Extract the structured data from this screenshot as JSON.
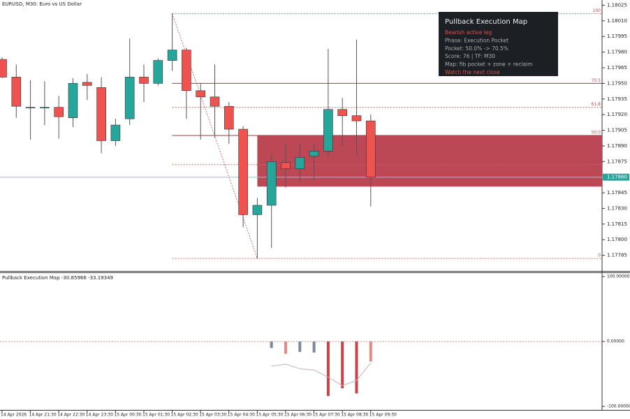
{
  "chart_data": [
    {
      "type": "candlestick",
      "title": "EURUSD, M30: Euro vs US Dollar",
      "categories": [
        "14 Apr 2026",
        null,
        "14 Apr 21:30",
        null,
        "14 Apr 22:30",
        null,
        "14 Apr 23:30",
        null,
        "15 Apr 00:30",
        null,
        "15 Apr 01:30",
        null,
        "15 Apr 02:30",
        null,
        "15 Apr 03:30",
        null,
        "15 Apr 04:30",
        null,
        "15 Apr 05:30",
        null,
        "15 Apr 06:30",
        null,
        "15 Apr 07:30",
        null,
        "15 Apr 08:30",
        null,
        "15 Apr 09:30"
      ],
      "open": [
        1.17973,
        1.17956,
        1.17927,
        1.17927,
        1.17927,
        1.17917,
        1.17951,
        1.17946,
        1.17895,
        1.17916,
        1.17956,
        1.1795,
        1.17972,
        1.17982,
        1.17943,
        1.17937,
        1.17928,
        1.17906,
        1.17824,
        1.17833,
        1.17874,
        1.17868,
        1.1788,
        1.17885,
        1.17925,
        1.17919,
        1.17914
      ],
      "high": [
        1.17975,
        1.17968,
        1.17953,
        1.17952,
        1.17938,
        1.17955,
        1.17959,
        1.17956,
        1.17916,
        1.17993,
        1.17968,
        1.17974,
        1.18017,
        1.17984,
        1.1795,
        1.17968,
        1.17932,
        1.17909,
        1.1784,
        1.17882,
        1.17892,
        1.17892,
        1.17892,
        1.17983,
        1.17936,
        1.17992,
        1.1792
      ],
      "low": [
        1.17955,
        1.17917,
        1.17896,
        1.1791,
        1.17897,
        1.17908,
        1.17934,
        1.17883,
        1.1789,
        1.1791,
        1.17932,
        1.17948,
        1.17962,
        1.17916,
        1.17896,
        1.17898,
        1.17892,
        1.17812,
        1.17782,
        1.17792,
        1.1785,
        1.17856,
        1.17857,
        1.1788,
        1.1789,
        1.17881,
        1.17832
      ],
      "close": [
        1.17956,
        1.17928,
        1.17927,
        1.17927,
        1.17918,
        1.1795,
        1.17948,
        1.17895,
        1.1791,
        1.17956,
        1.1795,
        1.17972,
        1.17982,
        1.17943,
        1.17937,
        1.17928,
        1.17906,
        1.17824,
        1.17833,
        1.17875,
        1.17868,
        1.17879,
        1.17885,
        1.17925,
        1.17919,
        1.17914,
        1.1786
      ],
      "up_color": "#26a69a",
      "down_color": "#ef5350",
      "ylim": [
        1.1777,
        1.1803
      ],
      "yticks": [
        {
          "value": 1.18025,
          "label": "1.18025"
        },
        {
          "value": 1.1801,
          "label": "1.18010"
        },
        {
          "value": 1.17995,
          "label": "1.17995"
        },
        {
          "value": 1.1798,
          "label": "1.17980"
        },
        {
          "value": 1.17965,
          "label": "1.17965"
        },
        {
          "value": 1.1795,
          "label": "1.17950"
        },
        {
          "value": 1.17935,
          "label": "1.17935"
        },
        {
          "value": 1.1792,
          "label": "1.17920"
        },
        {
          "value": 1.17905,
          "label": "1.17905"
        },
        {
          "value": 1.1789,
          "label": "1.17890"
        },
        {
          "value": 1.17875,
          "label": "1.17875"
        },
        {
          "value": 1.17845,
          "label": "1.17845"
        },
        {
          "value": 1.1783,
          "label": "1.17830"
        },
        {
          "value": 1.17815,
          "label": "1.17815"
        },
        {
          "value": 1.178,
          "label": "1.17800"
        },
        {
          "value": 1.17785,
          "label": "1.17785"
        }
      ],
      "current_price": {
        "value": 1.1786,
        "label": "1.17860"
      },
      "fib_levels": [
        {
          "level": "100",
          "price": 1.18017,
          "style": "dotted"
        },
        {
          "level": "70.5",
          "price": 1.1795,
          "style": "solid"
        },
        {
          "level": "61.8",
          "price": 1.17927,
          "style": "dotted"
        },
        {
          "level": "50.0",
          "price": 1.179,
          "style": "solid"
        },
        {
          "level": "38.2",
          "price": 1.17872,
          "style": "dotted"
        },
        {
          "level": "0",
          "price": 1.17782,
          "style": "dotted"
        }
      ],
      "zone": {
        "high": 1.179,
        "low": 1.17851,
        "color": "#b83d4c"
      },
      "info_panel": {
        "title": "Pullback Execution Map",
        "lines": [
          {
            "text": "Bearish active leg",
            "color": "#e0524f"
          },
          {
            "text": "Phase: Execution Pocket",
            "color": "#a9acb3"
          },
          {
            "text": "Pocket: 50.0% -> 70.5%",
            "color": "#a9acb3"
          },
          {
            "text": "Score: 76 | TF: M30",
            "color": "#a9acb3"
          },
          {
            "text": "Map: fib pocket + zone + reclaim",
            "color": "#a9acb3"
          },
          {
            "text": "Watch the next close",
            "color": "#e0524f"
          }
        ]
      }
    },
    {
      "type": "bar",
      "title": "Pullback Execution Map",
      "values": [
        null,
        null,
        null,
        null,
        null,
        null,
        null,
        null,
        null,
        null,
        null,
        null,
        null,
        null,
        null,
        null,
        null,
        null,
        null,
        -10,
        -19,
        -16,
        -17,
        -84,
        -72,
        -80,
        -30.85966
      ],
      "colors": [
        null,
        null,
        null,
        null,
        null,
        null,
        null,
        null,
        null,
        null,
        null,
        null,
        null,
        null,
        null,
        null,
        null,
        null,
        null,
        "#7b8a9b",
        "#ea8a84",
        "#7b8a9b",
        "#7b8a9b",
        "#c4454a",
        "#c4454a",
        "#c4454a",
        "#ea8a84"
      ],
      "line_values": [
        null,
        null,
        null,
        null,
        null,
        null,
        null,
        null,
        null,
        null,
        null,
        null,
        null,
        null,
        null,
        null,
        null,
        null,
        null,
        -38,
        -35,
        -42,
        -44,
        -55,
        -68,
        -60,
        -33.19349
      ],
      "line_color": "#c9b0b3",
      "ylim": [
        -106.5,
        106.5
      ],
      "yticks": [
        {
          "value": 100,
          "label": "100.00000"
        },
        {
          "value": 0,
          "label": "0.00000"
        },
        {
          "value": -100,
          "label": "-100.00000"
        }
      ]
    }
  ]
}
